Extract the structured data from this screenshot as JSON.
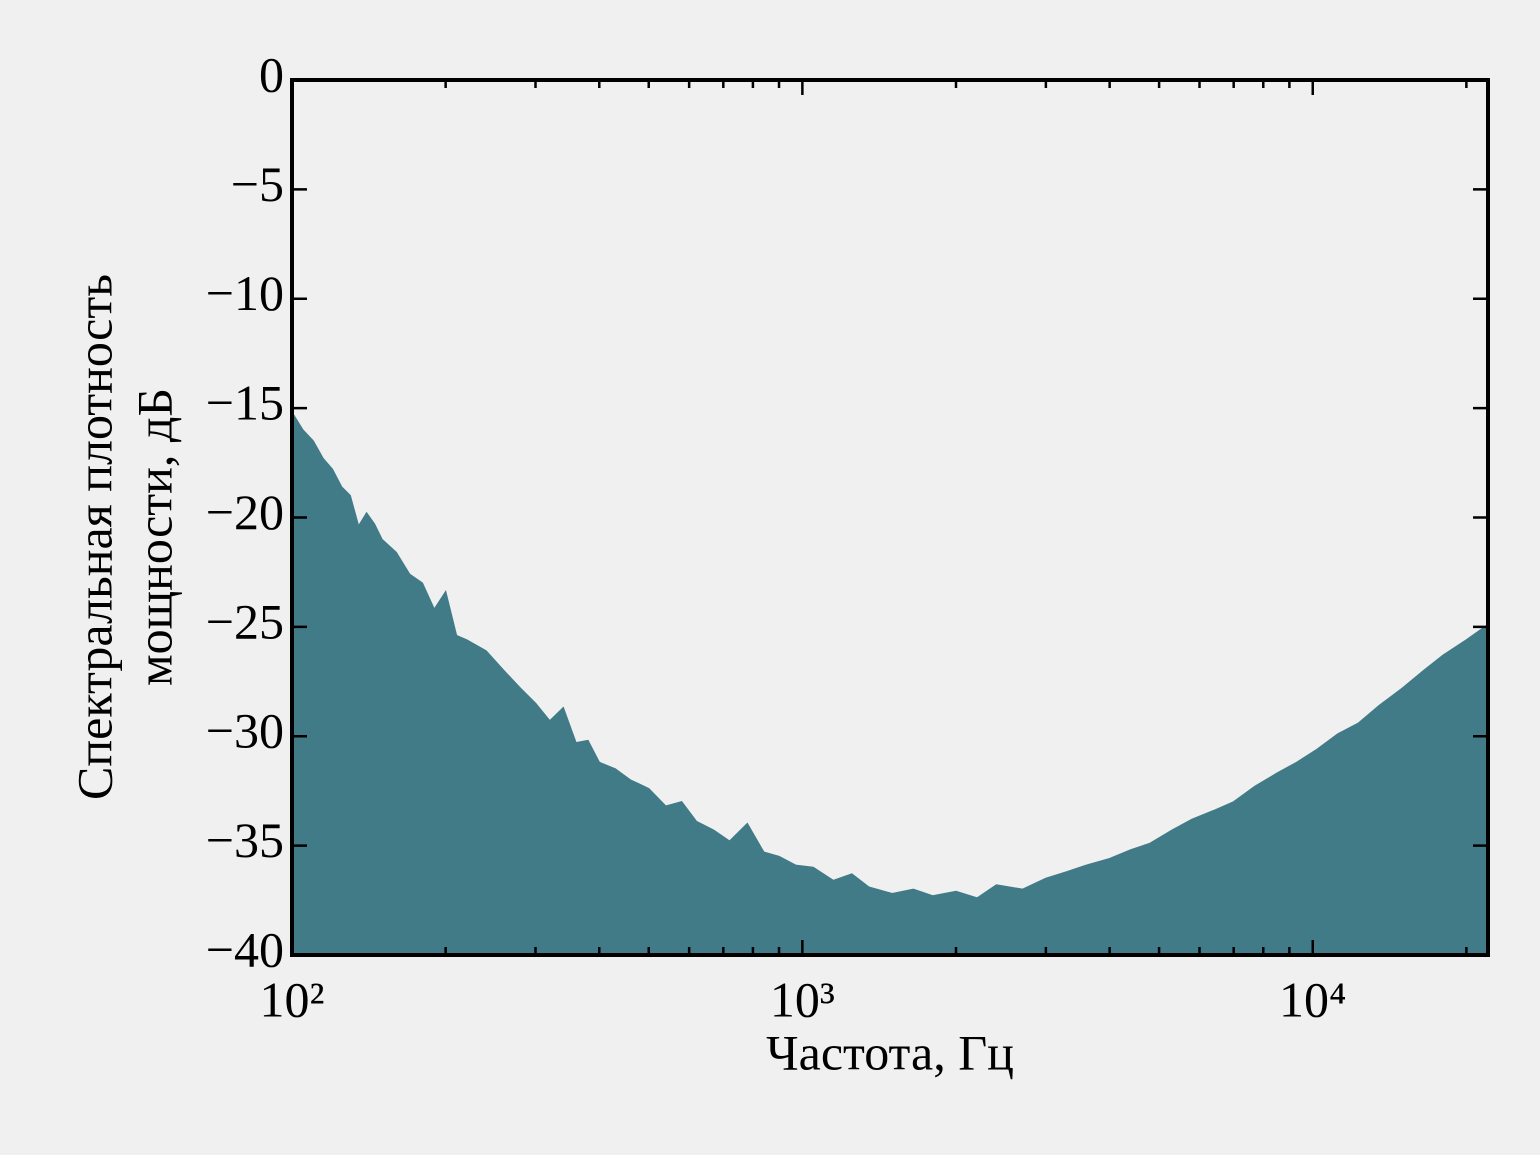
{
  "chart_data": {
    "type": "area",
    "xlabel": "Частота, Гц",
    "ylabel": [
      "Спектральная плотность",
      "мощности, дБ"
    ],
    "x": [
      100,
      105,
      110,
      115,
      120,
      125,
      130,
      135,
      140,
      145,
      150,
      160,
      170,
      180,
      190,
      200,
      210,
      220,
      240,
      260,
      280,
      300,
      320,
      340,
      360,
      380,
      400,
      430,
      460,
      500,
      540,
      580,
      620,
      670,
      720,
      780,
      840,
      900,
      970,
      1050,
      1150,
      1250,
      1350,
      1500,
      1650,
      1800,
      2000,
      2200,
      2400,
      2700,
      3000,
      3300,
      3600,
      4000,
      4400,
      4800,
      5300,
      5800,
      6400,
      7000,
      7700,
      8500,
      9300,
      10200,
      11200,
      12300,
      13500,
      15000,
      16500,
      18000,
      20000,
      22050
    ],
    "values": [
      -15.2,
      -16.0,
      -16.5,
      -17.3,
      -17.8,
      -18.6,
      -19.0,
      -20.4,
      -19.8,
      -20.3,
      -21.0,
      -21.6,
      -22.6,
      -23.0,
      -24.2,
      -23.4,
      -25.4,
      -25.6,
      -26.1,
      -27.0,
      -27.8,
      -28.5,
      -29.3,
      -28.7,
      -30.3,
      -30.2,
      -31.2,
      -31.5,
      -32.0,
      -32.4,
      -33.2,
      -33.0,
      -33.9,
      -34.3,
      -34.8,
      -34.0,
      -35.3,
      -35.5,
      -35.9,
      -36.0,
      -36.6,
      -36.3,
      -36.9,
      -37.2,
      -37.0,
      -37.3,
      -37.1,
      -37.4,
      -36.8,
      -37.0,
      -36.5,
      -36.2,
      -35.9,
      -35.6,
      -35.2,
      -34.9,
      -34.3,
      -33.8,
      -33.4,
      -33.0,
      -32.3,
      -31.7,
      -31.2,
      -30.6,
      -29.9,
      -29.4,
      -28.6,
      -27.8,
      -27.0,
      -26.3,
      -25.6,
      -24.9
    ],
    "color": "#417b87",
    "xscale": "log",
    "xlim": [
      100,
      22050
    ],
    "xticks": [
      {
        "value": 100,
        "label": "10²"
      },
      {
        "value": 1000,
        "label": "10³"
      },
      {
        "value": 10000,
        "label": "10⁴"
      }
    ],
    "ylim": [
      -40,
      0
    ],
    "yticks": [
      {
        "value": -40,
        "label": "−40"
      },
      {
        "value": -35,
        "label": "−35"
      },
      {
        "value": -30,
        "label": "−30"
      },
      {
        "value": -25,
        "label": "−25"
      },
      {
        "value": -20,
        "label": "−20"
      },
      {
        "value": -15,
        "label": "−15"
      },
      {
        "value": -10,
        "label": "−10"
      },
      {
        "value": -5,
        "label": "−5"
      },
      0
    ],
    "grid": false
  }
}
